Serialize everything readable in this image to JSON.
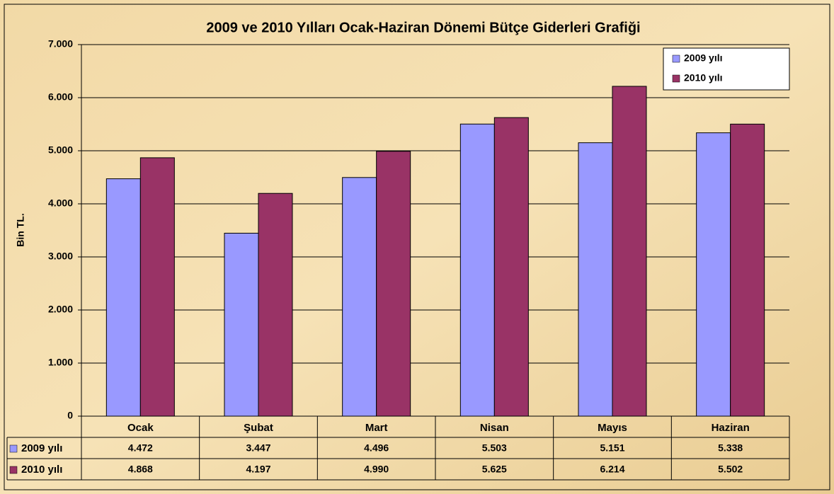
{
  "chart_data": {
    "type": "bar",
    "title": "2009 ve 2010 Yılları Ocak-Haziran Dönemi Bütçe Giderleri Grafiği",
    "y_label": "Bin TL.",
    "categories": [
      "Ocak",
      "Şubat",
      "Mart",
      "Nisan",
      "Mayıs",
      "Haziran"
    ],
    "series": [
      {
        "name": "2009 yılı",
        "color": "#9999ff",
        "values": [
          4472,
          3447,
          4496,
          5503,
          5151,
          5338
        ],
        "value_labels": [
          "4.472",
          "3.447",
          "4.496",
          "5.503",
          "5.151",
          "5.338"
        ]
      },
      {
        "name": "2010 yılı",
        "color": "#993366",
        "values": [
          4868,
          4197,
          4990,
          5625,
          6214,
          5502
        ],
        "value_labels": [
          "4.868",
          "4.197",
          "4.990",
          "5.625",
          "6.214",
          "5.502"
        ]
      }
    ],
    "ylim": [
      0,
      7000
    ],
    "yticks": [
      0,
      {
        "value": 1000,
        "label": "1.000"
      },
      {
        "value": 2000,
        "label": "2.000"
      },
      {
        "value": 3000,
        "label": "3.000"
      },
      {
        "value": 4000,
        "label": "4.000"
      },
      {
        "value": 5000,
        "label": "5.000"
      },
      {
        "value": 6000,
        "label": "6.000"
      },
      {
        "value": 7000,
        "label": "7.000"
      }
    ],
    "grid": true,
    "legend": "top-right"
  }
}
